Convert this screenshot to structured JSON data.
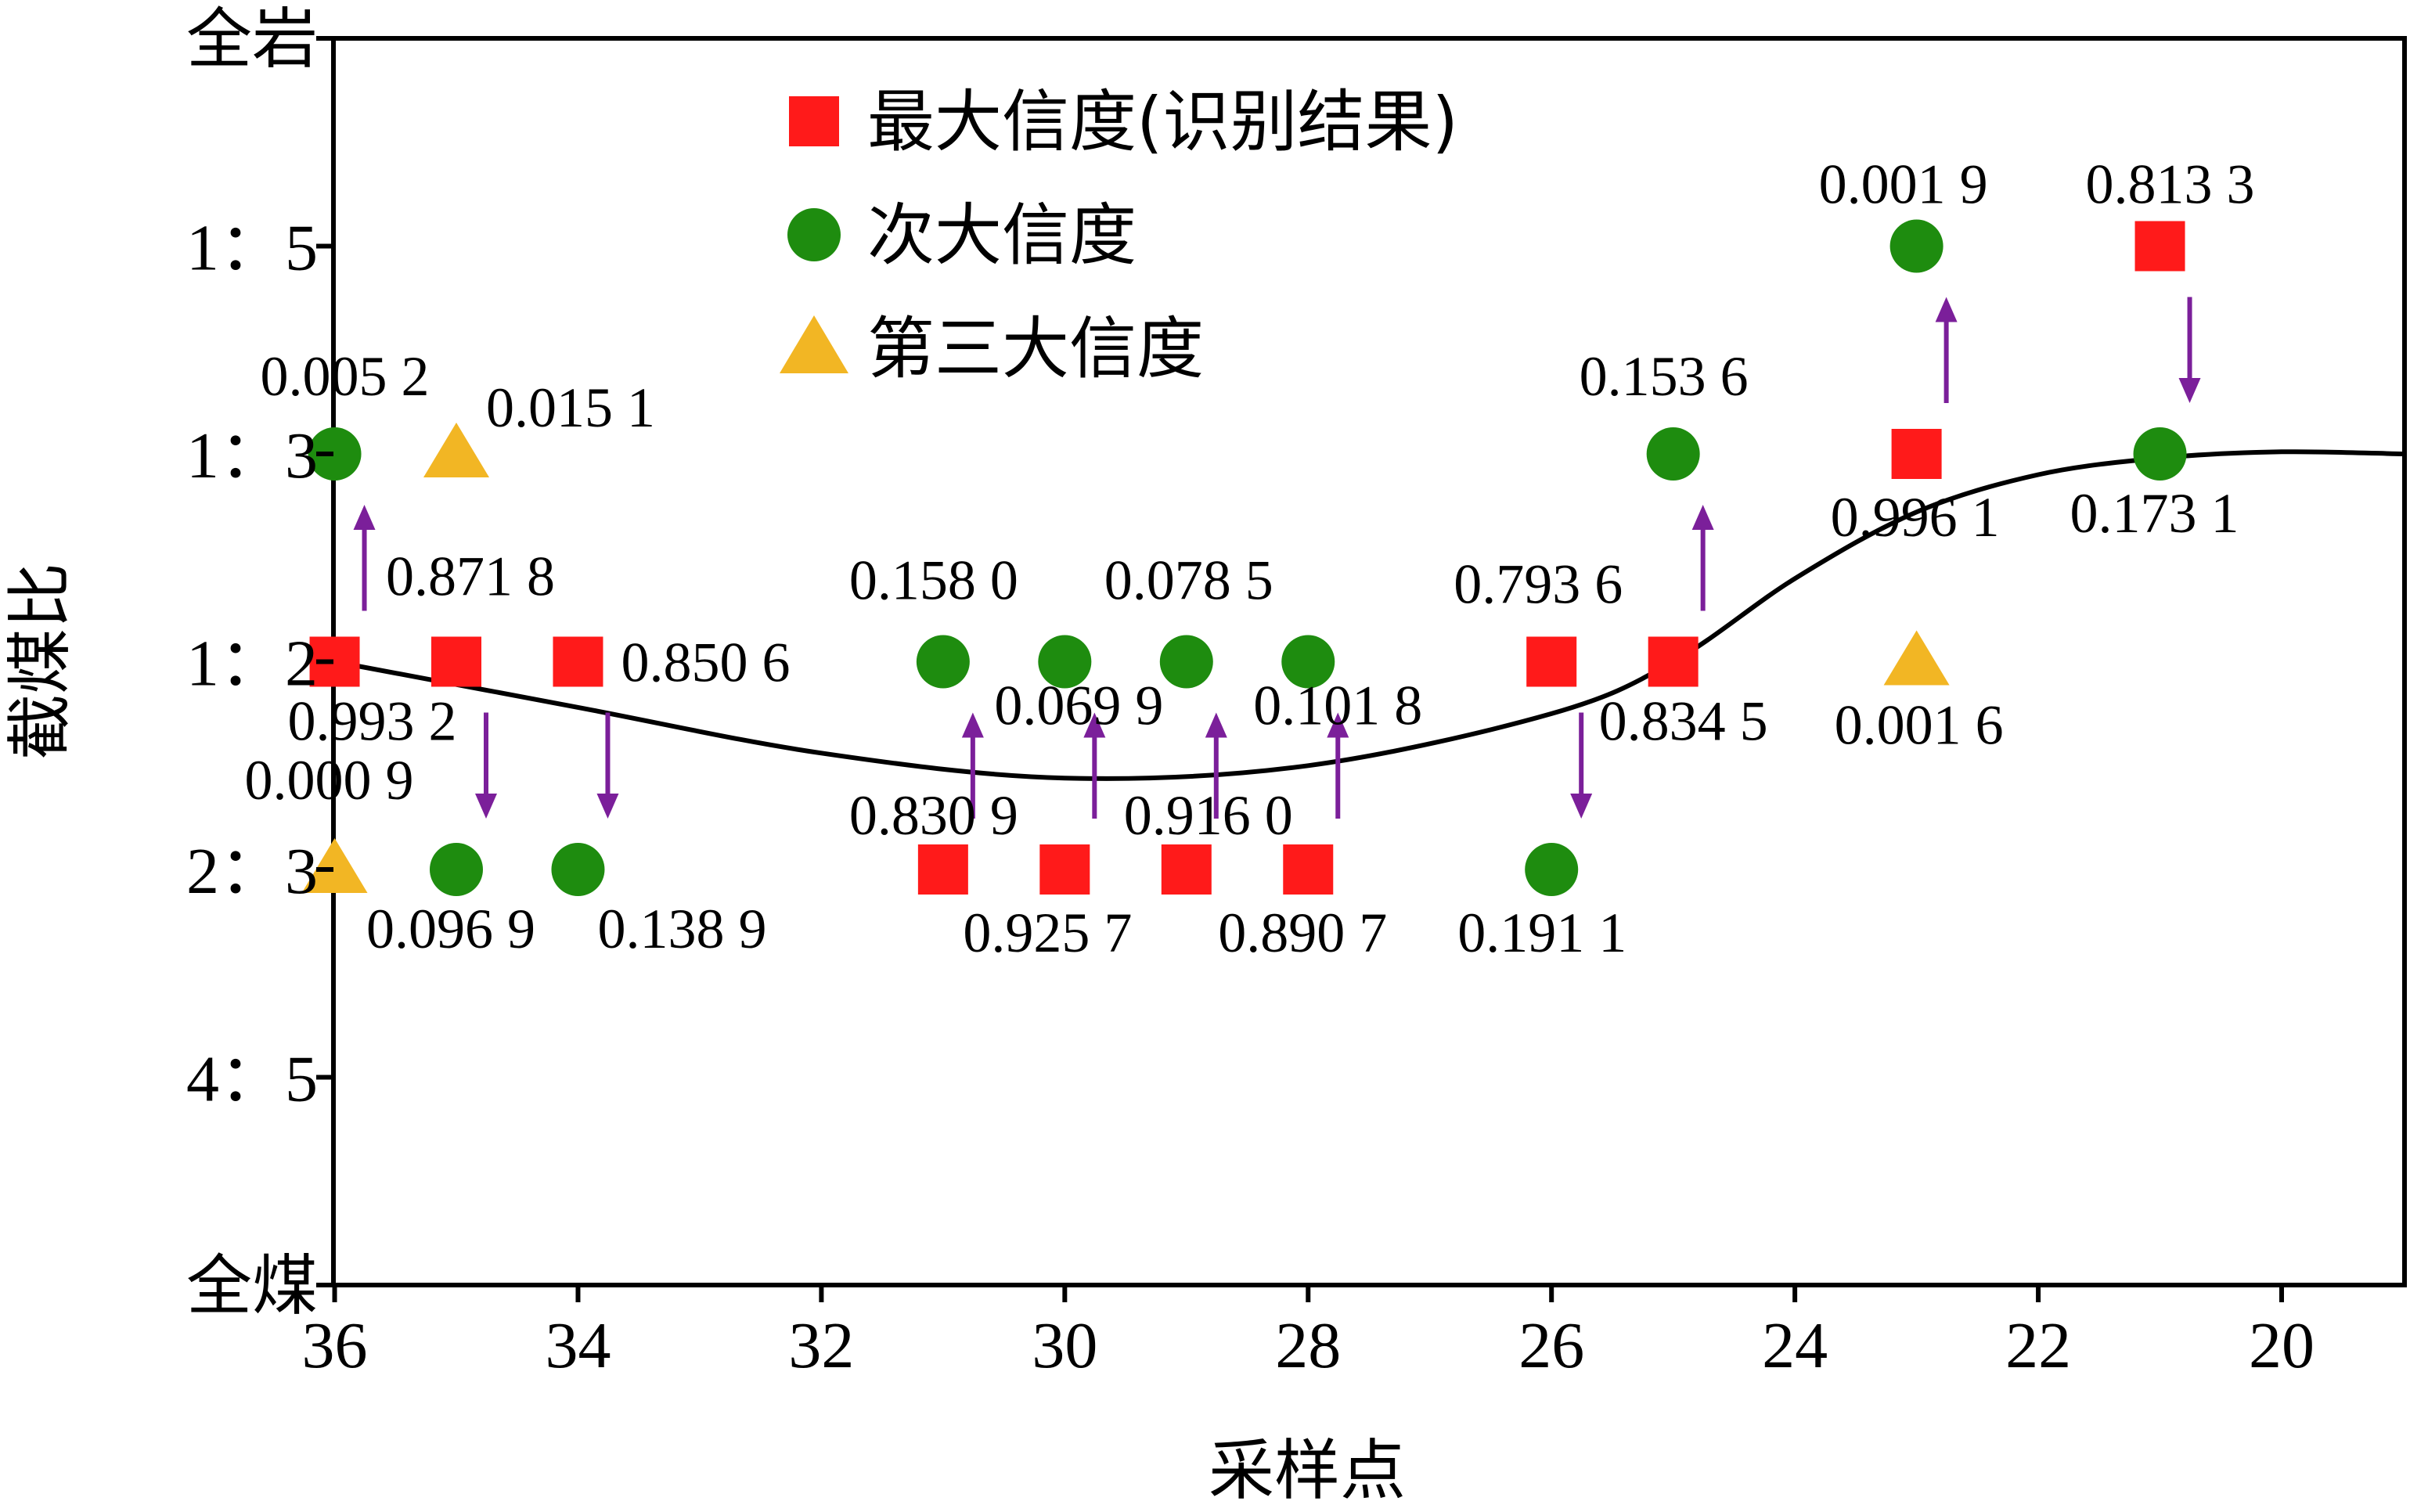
{
  "chart_data": {
    "type": "scatter",
    "xlabel": "采样点",
    "ylabel": "截煤比",
    "x_reversed": true,
    "xlim": [
      36,
      19
    ],
    "x_ticks": [
      36,
      34,
      32,
      30,
      28,
      26,
      24,
      22,
      20
    ],
    "y_categories": [
      "全煤",
      "4：5",
      "2：3",
      "1：2",
      "1：3",
      "1：5",
      "全岩"
    ],
    "y_tick_labels": [
      "全岩",
      "1：5",
      "1：3",
      "1：2",
      "2：3",
      "4：5",
      "全煤"
    ],
    "legend": [
      {
        "name": "最大信度(识别结果)",
        "marker": "square",
        "color": "#ff1a1a"
      },
      {
        "name": "次大信度",
        "marker": "circle",
        "color": "#1e8c0f"
      },
      {
        "name": "第三大信度",
        "marker": "triangle",
        "color": "#f2b624"
      }
    ],
    "series": [
      {
        "name": "最大信度(识别结果)",
        "points": [
          {
            "x": 36,
            "y": "1：2",
            "value": "0.993 2"
          },
          {
            "x": 35,
            "y": "1：2",
            "value": "0.871 8"
          },
          {
            "x": 34,
            "y": "1：2",
            "value": "0.850 6"
          },
          {
            "x": 31,
            "y": "2：3",
            "value": "0.830 9"
          },
          {
            "x": 30,
            "y": "2：3",
            "value": "0.925 7"
          },
          {
            "x": 29,
            "y": "2：3",
            "value": "0.916 0"
          },
          {
            "x": 28,
            "y": "2：3",
            "value": "0.890 7"
          },
          {
            "x": 26,
            "y": "1：2",
            "value": "0.793 6"
          },
          {
            "x": 25,
            "y": "1：2",
            "value": "0.834 5"
          },
          {
            "x": 23,
            "y": "1：3",
            "value": "0.996 1"
          },
          {
            "x": 21,
            "y": "1：5",
            "value": "0.813 3"
          }
        ]
      },
      {
        "name": "次大信度",
        "points": [
          {
            "x": 36,
            "y": "1：3",
            "value": "0.005 2"
          },
          {
            "x": 35,
            "y": "2：3",
            "value": "0.096 9"
          },
          {
            "x": 34,
            "y": "2：3",
            "value": "0.138 9"
          },
          {
            "x": 31,
            "y": "1：2",
            "value": "0.158 0"
          },
          {
            "x": 30,
            "y": "1：2",
            "value": "0.069 9"
          },
          {
            "x": 29,
            "y": "1：2",
            "value": "0.078 5"
          },
          {
            "x": 28,
            "y": "1：2",
            "value": "0.101 8"
          },
          {
            "x": 26,
            "y": "2：3",
            "value": "0.191 1"
          },
          {
            "x": 25,
            "y": "1：3",
            "value": "0.153 6"
          },
          {
            "x": 23,
            "y": "1：5",
            "value": "0.001 9"
          },
          {
            "x": 21,
            "y": "1：3",
            "value": "0.173 1"
          }
        ]
      },
      {
        "name": "第三大信度",
        "points": [
          {
            "x": 36,
            "y": "2：3",
            "value": "0.000 9"
          },
          {
            "x": 35,
            "y": "1：3",
            "value": "0.015 1"
          },
          {
            "x": 23,
            "y": "1：2",
            "value": "0.001 6"
          }
        ]
      }
    ],
    "trend_line": [
      {
        "x": 36,
        "y": 3.0
      },
      {
        "x": 34,
        "y": 2.78
      },
      {
        "x": 32,
        "y": 2.56
      },
      {
        "x": 30,
        "y": 2.44
      },
      {
        "x": 28,
        "y": 2.5
      },
      {
        "x": 26,
        "y": 2.75
      },
      {
        "x": 25,
        "y": 3.0
      },
      {
        "x": 24,
        "y": 3.4
      },
      {
        "x": 23,
        "y": 3.72
      },
      {
        "x": 22,
        "y": 3.9
      },
      {
        "x": 21,
        "y": 3.98
      },
      {
        "x": 20,
        "y": 4.01
      },
      {
        "x": 19,
        "y": 4.0
      }
    ],
    "arrows": [
      {
        "x": 36,
        "from": "1：2",
        "to": "1：3"
      },
      {
        "x": 35,
        "from": "1：2",
        "to": "2：3"
      },
      {
        "x": 34,
        "from": "1：2",
        "to": "2：3"
      },
      {
        "x": 31,
        "from": "2：3",
        "to": "1：2"
      },
      {
        "x": 30,
        "from": "2：3",
        "to": "1：2"
      },
      {
        "x": 29,
        "from": "2：3",
        "to": "1：2"
      },
      {
        "x": 28,
        "from": "2：3",
        "to": "1：2"
      },
      {
        "x": 26,
        "from": "1：2",
        "to": "2：3"
      },
      {
        "x": 25,
        "from": "1：2",
        "to": "1：3"
      },
      {
        "x": 23,
        "from": "1：3",
        "to": "1：5"
      },
      {
        "x": 21,
        "from": "1：5",
        "to": "1：3"
      }
    ]
  }
}
